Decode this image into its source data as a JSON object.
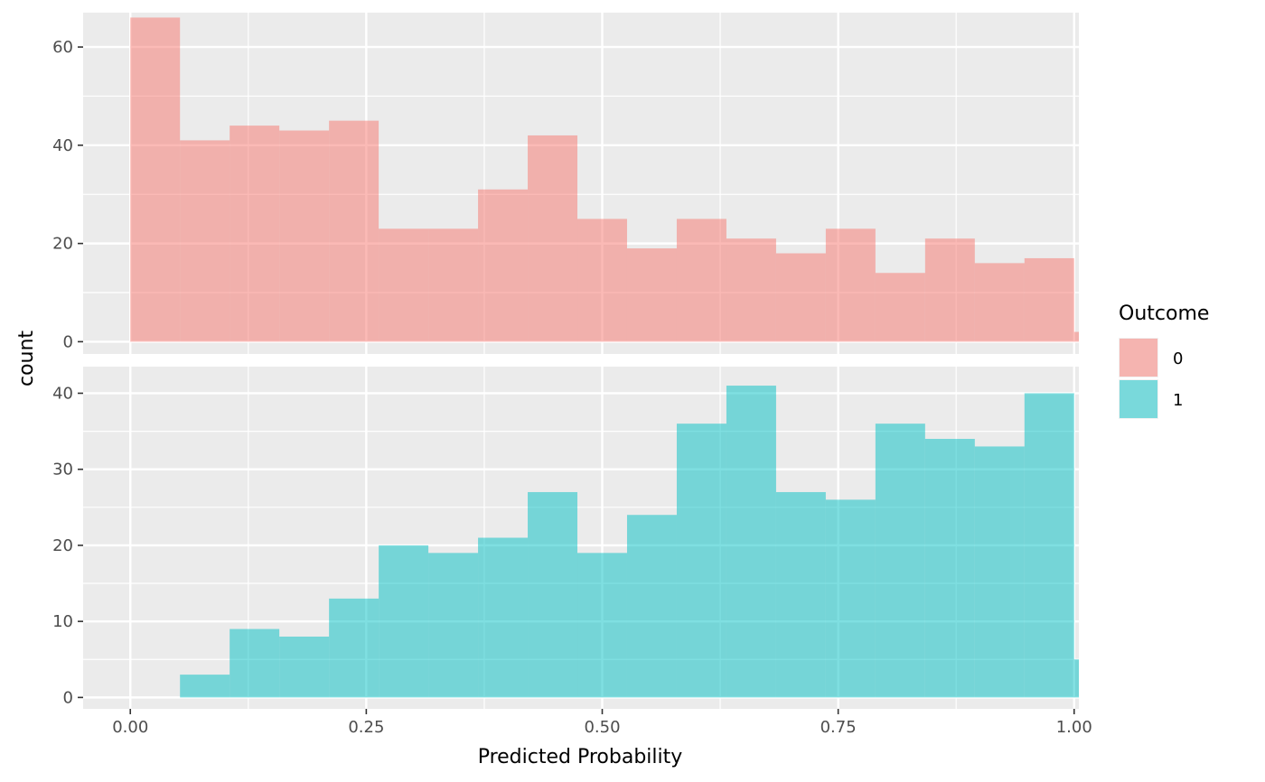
{
  "chart_data": {
    "type": "bar",
    "subtype": "faceted-histogram",
    "title": "",
    "xlabel": "Predicted Probability",
    "ylabel": "count",
    "xlim": [
      -0.05,
      1.005
    ],
    "x_ticks": [
      {
        "value": 0.0,
        "label": "0.00"
      },
      {
        "value": 0.25,
        "label": "0.25"
      },
      {
        "value": 0.5,
        "label": "0.50"
      },
      {
        "value": 0.75,
        "label": "0.75"
      },
      {
        "value": 1.0,
        "label": "1.00"
      }
    ],
    "bin_width": 0.05263,
    "bin_starts": [
      0.0,
      0.05263,
      0.10526,
      0.15789,
      0.21053,
      0.26316,
      0.31579,
      0.36842,
      0.42105,
      0.47368,
      0.52632,
      0.57895,
      0.63158,
      0.68421,
      0.73684,
      0.78947,
      0.84211,
      0.89474,
      0.94737,
      1.0
    ],
    "legend": {
      "title": "Outcome",
      "position": "right",
      "entries": [
        {
          "label": "0",
          "color": "#F8766D"
        },
        {
          "label": "1",
          "color": "#00BFC4"
        }
      ]
    },
    "fill_opacity": 0.5,
    "background": "#EBEBEB",
    "grid": true,
    "panels": [
      {
        "series": "0",
        "color": "#F8766D",
        "ylim": [
          -2.5,
          67
        ],
        "y_ticks": [
          0,
          20,
          40,
          60
        ],
        "counts": [
          66,
          41,
          44,
          43,
          45,
          23,
          23,
          31,
          42,
          25,
          19,
          25,
          21,
          18,
          23,
          14,
          21,
          16,
          17,
          2
        ]
      },
      {
        "series": "1",
        "color": "#00BFC4",
        "ylim": [
          -1.5,
          43.5
        ],
        "y_ticks": [
          0,
          10,
          20,
          30,
          40
        ],
        "counts": [
          0,
          3,
          9,
          8,
          13,
          20,
          19,
          21,
          27,
          19,
          24,
          36,
          41,
          27,
          26,
          36,
          34,
          33,
          40,
          5
        ]
      }
    ]
  }
}
